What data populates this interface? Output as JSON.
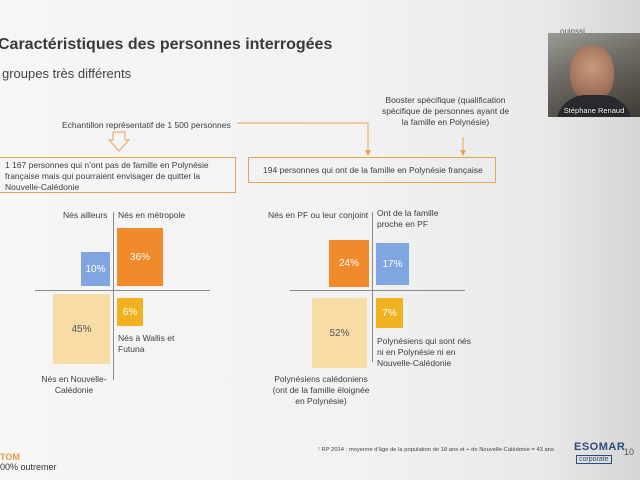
{
  "slide": {
    "title": "Caractéristiques des personnes interrogées",
    "subtitle": "groupes très différents",
    "sample_label": "Echantillon représentatif de 1 500 personnes",
    "booster_label": "Booster spécifique (qualification spécifique de personnes ayant de la famille en Polynésie)",
    "left_box": "1 167 personnes qui n’ont pas de famille en Polynésie française mais qui pourraient envisager de quitter la Nouvelle-Calédonie",
    "right_box": "194 personnes qui ont de la famille en Polynésie française",
    "left_quadrants": {
      "top_left_label": "Nés ailleurs",
      "top_left_value": "10%",
      "top_right_label": "Nés en métropole",
      "top_right_value": "36%",
      "bottom_left_value": "45%",
      "bottom_left_label": "Nés en Nouvelle-Calédonie",
      "bottom_right_value": "6%",
      "bottom_right_label": "Nés à Wallis et Futuna"
    },
    "right_quadrants": {
      "top_left_label": "Nés en PF ou leur conjoint",
      "top_left_value": "24%",
      "top_right_label": "Ont de la famille proche en PF",
      "top_right_value": "17%",
      "bottom_left_value": "52%",
      "bottom_left_label": "Polynésiens calédoniens (ont de la famille éloignée en Polynésie)",
      "bottom_right_value": "7%",
      "bottom_right_label": "Polynésiens qui sont nés ni en Polynésie ni en Nouvelle-Calédonie"
    },
    "footnote": "¹ RP 2014 : moyenne d’âge de la population de 18 ans et + de Nouvelle-Calédonie = 43 ans",
    "footer_brand": "TOM",
    "footer_tagline": "00% outremer",
    "esomar": "ESOMAR",
    "esomar_sub": "corporate",
    "page_number": "10"
  },
  "webcam": {
    "name": "Stéphane Renaud",
    "corner_text": "ouinssi"
  },
  "colors": {
    "orange": "#f08a2a",
    "blue": "#7fa6e0",
    "yellow": "#f0b21e",
    "beige": "#f7dca6",
    "box_border": "#e9a258"
  }
}
